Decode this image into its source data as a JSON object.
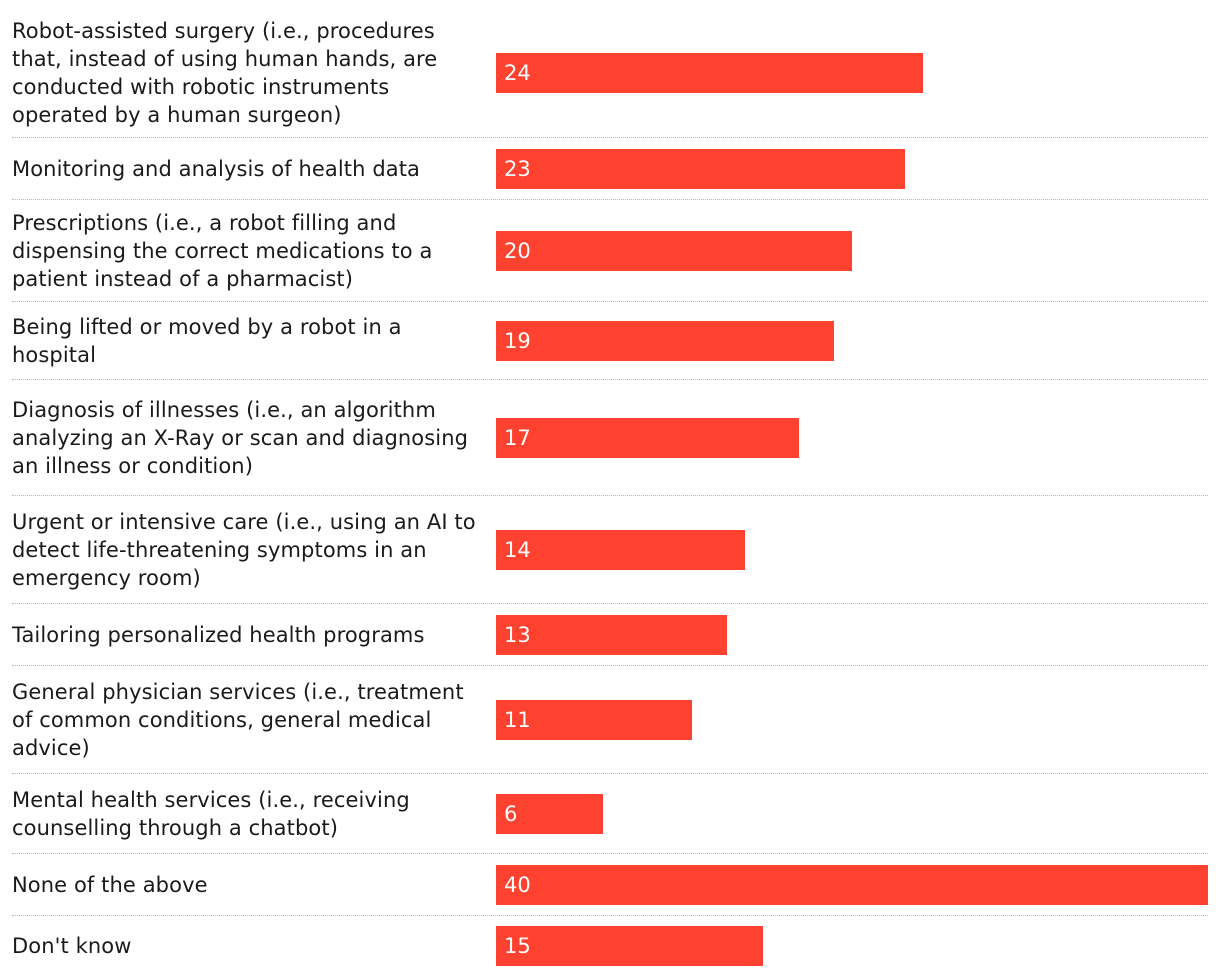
{
  "chart_data": {
    "type": "bar",
    "orientation": "horizontal",
    "title": "",
    "xlabel": "",
    "ylabel": "",
    "xlim": [
      0,
      40
    ],
    "grid": false,
    "bar_color": "#ff4230",
    "value_label_color": "#ffffff",
    "categories": [
      "Robot-assisted surgery (i.e., procedures that, instead of using human hands, are conducted with robotic instruments operated by a human surgeon)",
      "Monitoring and analysis of health data",
      "Prescriptions (i.e., a robot filling and dispensing the correct medications to a patient instead of a pharmacist)",
      "Being lifted or moved by a robot in a hospital",
      "Diagnosis of illnesses (i.e., an algorithm analyzing an X-Ray or scan and diagnosing an illness or condition)",
      "Urgent or intensive care (i.e., using an AI to detect life-threatening symptoms in an emergency room)",
      "Tailoring personalized health programs",
      "General physician services (i.e., treatment of common conditions, general medical advice)",
      "Mental health services (i.e., receiving counselling through a chatbot)",
      "None of the above",
      "Don't know"
    ],
    "values": [
      24,
      23,
      20,
      19,
      17,
      14,
      13,
      11,
      6,
      40,
      15
    ]
  }
}
